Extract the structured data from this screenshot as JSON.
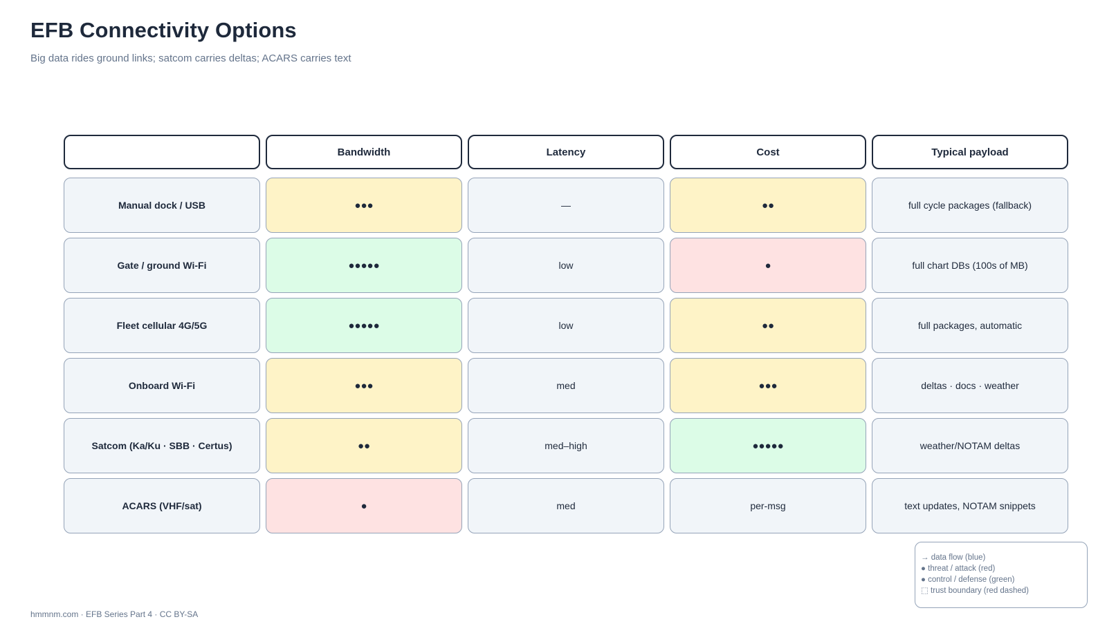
{
  "header": {
    "title": "EFB Connectivity Options",
    "subtitle": "Big data rides ground links; satcom carries deltas; ACARS carries text"
  },
  "table": {
    "columns": [
      "",
      "Bandwidth",
      "Latency",
      "Cost",
      "Typical payload"
    ],
    "rows": [
      {
        "label": "Manual dock / USB",
        "bandwidth": "●●●",
        "latency": "—",
        "cost": "●●",
        "payload": "full cycle packages (fallback)"
      },
      {
        "label": "Gate / ground Wi-Fi",
        "bandwidth": "●●●●●",
        "latency": "low",
        "cost": "●",
        "payload": "full chart DBs (100s of MB)"
      },
      {
        "label": "Fleet cellular 4G/5G",
        "bandwidth": "●●●●●",
        "latency": "low",
        "cost": "●●",
        "payload": "full packages, automatic"
      },
      {
        "label": "Onboard Wi-Fi",
        "bandwidth": "●●●",
        "latency": "med",
        "cost": "●●●",
        "payload": "deltas · docs · weather"
      },
      {
        "label": "Satcom (Ka/Ku · SBB · Certus)",
        "bandwidth": "●●",
        "latency": "med–high",
        "cost": "●●●●●",
        "payload": "weather/NOTAM deltas"
      },
      {
        "label": "ACARS (VHF/sat)",
        "bandwidth": "●",
        "latency": "med",
        "cost": "per-msg",
        "payload": "text updates, NOTAM snippets"
      }
    ]
  },
  "legend": {
    "items": [
      "→ data flow (blue)",
      "● threat / attack (red)",
      "● control / defense (green)",
      "⬚ trust boundary (red dashed)"
    ]
  },
  "footer": {
    "text": "hmmnm.com · EFB Series Part 4 · CC BY-SA"
  },
  "colors": {
    "amber": "#fef3c7",
    "green": "#dcfce7",
    "red": "#fee2e2",
    "neutral": "#f1f5f9",
    "text": "#1e293b",
    "muted": "#64748b",
    "border": "#94a3b8"
  }
}
